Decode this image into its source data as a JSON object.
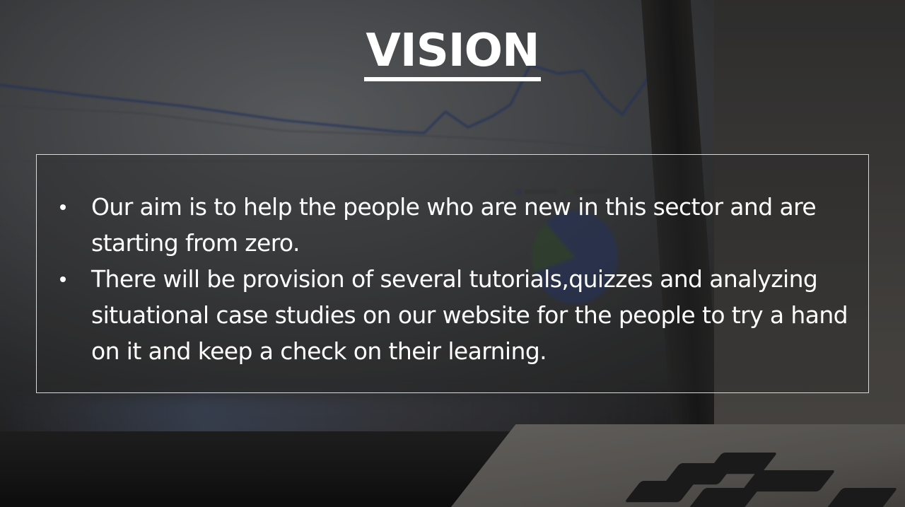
{
  "slide": {
    "title": "VISION",
    "bullets": [
      "Our aim is to help the people who are new in this sector and are starting from zero.",
      "There will be provision of several tutorials,quizzes  and analyzing situational case studies on our website for the people to try a hand on it and keep a check on their learning."
    ],
    "background_image": "blurred-laptop-analytics-icon"
  },
  "colors": {
    "text": "#ffffff",
    "box_border": "#d9d9d9",
    "background_dark": "#2a2a2b"
  }
}
